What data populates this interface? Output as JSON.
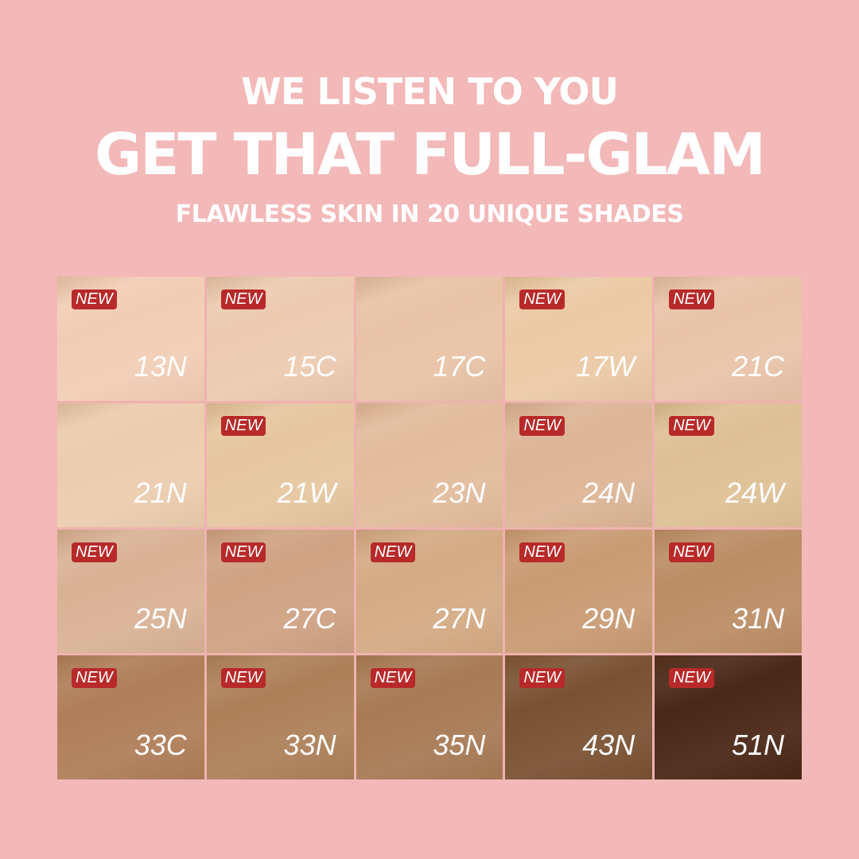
{
  "header": {
    "line1": "WE LISTEN TO YOU",
    "line2": "GET THAT FULL-GLAM",
    "line3": "FLAWLESS SKIN IN 20 UNIQUE SHADES"
  },
  "badge_label": "NEW",
  "colors": {
    "background": "#f3b8b8",
    "badge": "#b82a2a"
  },
  "shades": [
    {
      "code": "13N",
      "new": true,
      "color": "#f2cdb5"
    },
    {
      "code": "15C",
      "new": true,
      "color": "#eccab0"
    },
    {
      "code": "17C",
      "new": false,
      "color": "#e8c3a6"
    },
    {
      "code": "17W",
      "new": true,
      "color": "#ebc9a5"
    },
    {
      "code": "21C",
      "new": true,
      "color": "#e8c3a8"
    },
    {
      "code": "21N",
      "new": false,
      "color": "#ecccae"
    },
    {
      "code": "21W",
      "new": true,
      "color": "#e6c6a0"
    },
    {
      "code": "23N",
      "new": false,
      "color": "#e2bc9c"
    },
    {
      "code": "24N",
      "new": true,
      "color": "#dcb596"
    },
    {
      "code": "24W",
      "new": true,
      "color": "#dfc095"
    },
    {
      "code": "25N",
      "new": true,
      "color": "#d9b295"
    },
    {
      "code": "27C",
      "new": true,
      "color": "#cfa283"
    },
    {
      "code": "27N",
      "new": true,
      "color": "#d4aa84"
    },
    {
      "code": "29N",
      "new": true,
      "color": "#c99b73"
    },
    {
      "code": "31N",
      "new": true,
      "color": "#bb8d65"
    },
    {
      "code": "33C",
      "new": true,
      "color": "#b07e59"
    },
    {
      "code": "33N",
      "new": true,
      "color": "#ad8059"
    },
    {
      "code": "35N",
      "new": true,
      "color": "#a87a55"
    },
    {
      "code": "43N",
      "new": true,
      "color": "#7a5233"
    },
    {
      "code": "51N",
      "new": true,
      "color": "#4a2716"
    }
  ]
}
